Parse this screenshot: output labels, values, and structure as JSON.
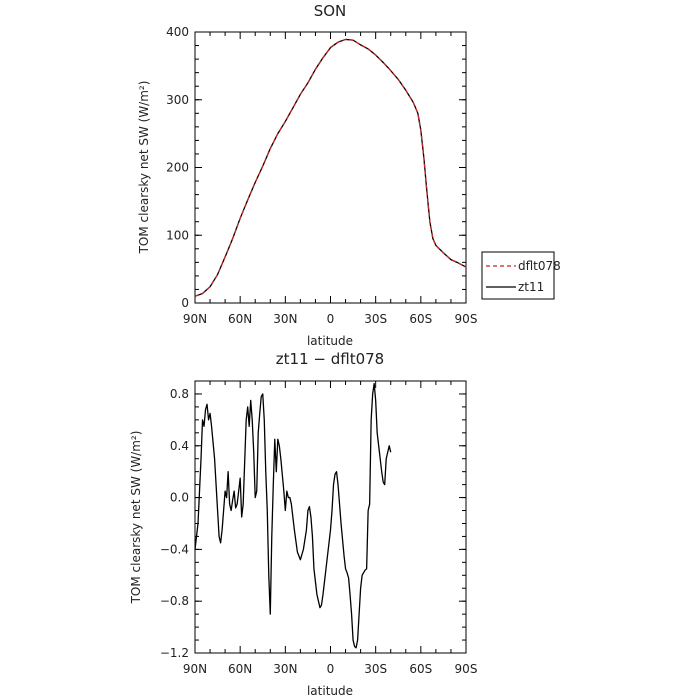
{
  "chart_data": [
    {
      "type": "line",
      "title": "SON",
      "xlabel": "latitude",
      "ylabel": "TOM clearsky net SW (W/m²)",
      "x_ticks": [
        "90N",
        "60N",
        "30N",
        "0",
        "30S",
        "60S",
        "90S"
      ],
      "xlim": [
        90,
        -90
      ],
      "ylim": [
        0,
        400
      ],
      "y_ticks": [
        "0",
        "100",
        "200",
        "300",
        "400"
      ],
      "legend_position": "right",
      "series": [
        {
          "name": "dflt078",
          "color": "#cc2222",
          "dash": true,
          "points": [
            [
              90,
              10
            ],
            [
              85,
              14
            ],
            [
              80,
              24
            ],
            [
              75,
              42
            ],
            [
              70,
              68
            ],
            [
              65,
              95
            ],
            [
              60,
              125
            ],
            [
              55,
              152
            ],
            [
              50,
              178
            ],
            [
              45,
              202
            ],
            [
              40,
              228
            ],
            [
              35,
              250
            ],
            [
              30,
              268
            ],
            [
              25,
              288
            ],
            [
              20,
              308
            ],
            [
              15,
              325
            ],
            [
              10,
              345
            ],
            [
              5,
              362
            ],
            [
              0,
              377
            ],
            [
              -5,
              385
            ],
            [
              -10,
              389
            ],
            [
              -15,
              388
            ],
            [
              -20,
              381
            ],
            [
              -25,
              375
            ],
            [
              -30,
              366
            ],
            [
              -35,
              355
            ],
            [
              -40,
              343
            ],
            [
              -45,
              330
            ],
            [
              -50,
              314
            ],
            [
              -55,
              296
            ],
            [
              -58,
              280
            ],
            [
              -60,
              255
            ],
            [
              -62,
              215
            ],
            [
              -64,
              165
            ],
            [
              -66,
              120
            ],
            [
              -68,
              95
            ],
            [
              -70,
              85
            ],
            [
              -75,
              74
            ],
            [
              -80,
              64
            ],
            [
              -85,
              59
            ],
            [
              -90,
              53
            ]
          ]
        },
        {
          "name": "zt11",
          "color": "#000000",
          "dash": false,
          "points": [
            [
              90,
              10
            ],
            [
              85,
              14
            ],
            [
              80,
              24
            ],
            [
              75,
              42
            ],
            [
              70,
              68
            ],
            [
              65,
              95
            ],
            [
              60,
              125
            ],
            [
              55,
              152
            ],
            [
              50,
              178
            ],
            [
              45,
              202
            ],
            [
              40,
              228
            ],
            [
              35,
              250
            ],
            [
              30,
              268
            ],
            [
              25,
              288
            ],
            [
              20,
              308
            ],
            [
              15,
              325
            ],
            [
              10,
              345
            ],
            [
              5,
              362
            ],
            [
              0,
              377
            ],
            [
              -5,
              385
            ],
            [
              -10,
              389
            ],
            [
              -15,
              388
            ],
            [
              -20,
              381
            ],
            [
              -25,
              375
            ],
            [
              -30,
              366
            ],
            [
              -35,
              355
            ],
            [
              -40,
              343
            ],
            [
              -45,
              330
            ],
            [
              -50,
              314
            ],
            [
              -55,
              296
            ],
            [
              -58,
              280
            ],
            [
              -60,
              255
            ],
            [
              -62,
              215
            ],
            [
              -64,
              165
            ],
            [
              -66,
              120
            ],
            [
              -68,
              95
            ],
            [
              -70,
              85
            ],
            [
              -75,
              74
            ],
            [
              -80,
              64
            ],
            [
              -85,
              59
            ],
            [
              -90,
              53
            ]
          ]
        }
      ]
    },
    {
      "type": "line",
      "title": "zt11 − dflt078",
      "xlabel": "latitude",
      "ylabel": "TOM clearsky net SW (W/m²)",
      "x_ticks": [
        "90N",
        "60N",
        "30N",
        "0",
        "30S",
        "60S",
        "90S"
      ],
      "xlim": [
        90,
        -90
      ],
      "ylim": [
        -1.2,
        0.9
      ],
      "y_ticks": [
        "−1.2",
        "−0.8",
        "−0.4",
        "0.0",
        "0.4",
        "0.8"
      ],
      "series": [
        {
          "name": "zt11 − dflt078",
          "color": "#000000",
          "dash": false,
          "points": [
            [
              90,
              -0.4
            ],
            [
              88,
              -0.2
            ],
            [
              86,
              0.3
            ],
            [
              85,
              0.6
            ],
            [
              84,
              0.55
            ],
            [
              83,
              0.68
            ],
            [
              82,
              0.72
            ],
            [
              81,
              0.6
            ],
            [
              80,
              0.65
            ],
            [
              79,
              0.55
            ],
            [
              77,
              0.3
            ],
            [
              75,
              -0.1
            ],
            [
              74,
              -0.3
            ],
            [
              73,
              -0.35
            ],
            [
              72,
              -0.25
            ],
            [
              70,
              0.05
            ],
            [
              69,
              0.0
            ],
            [
              68,
              0.2
            ],
            [
              67,
              -0.05
            ],
            [
              66,
              -0.1
            ],
            [
              65,
              -0.02
            ],
            [
              64,
              0.05
            ],
            [
              63,
              -0.08
            ],
            [
              62,
              -0.05
            ],
            [
              60,
              0.15
            ],
            [
              59,
              -0.15
            ],
            [
              58,
              -0.05
            ],
            [
              56,
              0.6
            ],
            [
              55,
              0.7
            ],
            [
              54,
              0.55
            ],
            [
              53,
              0.75
            ],
            [
              52,
              0.6
            ],
            [
              51,
              0.35
            ],
            [
              50,
              0.0
            ],
            [
              49,
              0.05
            ],
            [
              48,
              0.5
            ],
            [
              47,
              0.65
            ],
            [
              46,
              0.78
            ],
            [
              45,
              0.8
            ],
            [
              44,
              0.6
            ],
            [
              43,
              0.2
            ],
            [
              42,
              -0.1
            ],
            [
              41,
              -0.6
            ],
            [
              40,
              -0.9
            ],
            [
              39,
              -0.3
            ],
            [
              38,
              0.1
            ],
            [
              37,
              0.45
            ],
            [
              36,
              0.2
            ],
            [
              35,
              0.45
            ],
            [
              34,
              0.4
            ],
            [
              33,
              0.3
            ],
            [
              31,
              0.05
            ],
            [
              30,
              -0.1
            ],
            [
              29,
              0.05
            ],
            [
              28,
              0.0
            ],
            [
              27,
              0.0
            ],
            [
              26,
              -0.05
            ],
            [
              24,
              -0.25
            ],
            [
              22,
              -0.42
            ],
            [
              20,
              -0.48
            ],
            [
              18,
              -0.4
            ],
            [
              16,
              -0.25
            ],
            [
              15,
              -0.1
            ],
            [
              14,
              -0.07
            ],
            [
              13,
              -0.15
            ],
            [
              12,
              -0.3
            ],
            [
              11,
              -0.55
            ],
            [
              10,
              -0.65
            ],
            [
              9,
              -0.75
            ],
            [
              8,
              -0.8
            ],
            [
              7,
              -0.85
            ],
            [
              6,
              -0.83
            ],
            [
              5,
              -0.75
            ],
            [
              4,
              -0.65
            ],
            [
              3,
              -0.55
            ],
            [
              2,
              -0.45
            ],
            [
              1,
              -0.35
            ],
            [
              0,
              -0.25
            ],
            [
              -1,
              -0.1
            ],
            [
              -2,
              0.1
            ],
            [
              -3,
              0.18
            ],
            [
              -4,
              0.2
            ],
            [
              -5,
              0.1
            ],
            [
              -7,
              -0.2
            ],
            [
              -9,
              -0.45
            ],
            [
              -10,
              -0.55
            ],
            [
              -11,
              -0.58
            ],
            [
              -12,
              -0.62
            ],
            [
              -13,
              -0.75
            ],
            [
              -14,
              -0.9
            ],
            [
              -15,
              -1.1
            ],
            [
              -16,
              -1.15
            ],
            [
              -17,
              -1.16
            ],
            [
              -18,
              -1.1
            ],
            [
              -19,
              -0.9
            ],
            [
              -20,
              -0.7
            ],
            [
              -21,
              -0.6
            ],
            [
              -22,
              -0.58
            ],
            [
              -23,
              -0.56
            ],
            [
              -24,
              -0.55
            ],
            [
              -25,
              -0.1
            ],
            [
              -26,
              -0.05
            ],
            [
              -27,
              0.6
            ],
            [
              -28,
              0.8
            ],
            [
              -29,
              0.88
            ],
            [
              -30,
              0.75
            ],
            [
              -31,
              0.5
            ],
            [
              -32,
              0.4
            ],
            [
              -33,
              0.3
            ],
            [
              -34,
              0.2
            ],
            [
              -35,
              0.12
            ],
            [
              -36,
              0.1
            ],
            [
              -37,
              0.3
            ],
            [
              -38,
              0.35
            ],
            [
              -39,
              0.4
            ],
            [
              -40,
              0.35
            ]
          ]
        }
      ]
    }
  ]
}
